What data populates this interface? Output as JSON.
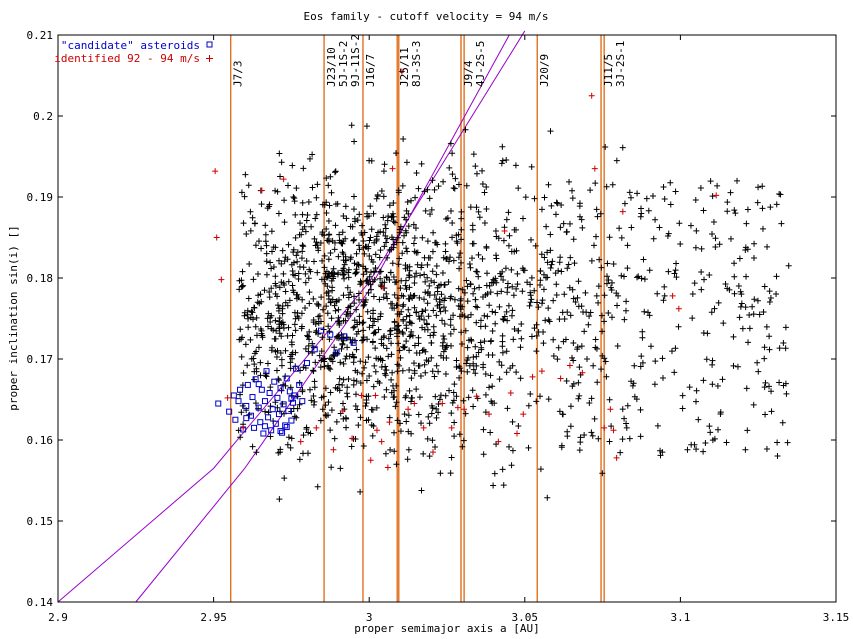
{
  "chart_data": {
    "type": "scatter",
    "title": "Eos family - cutoff velocity = 94 m/s",
    "xlabel": "proper semimajor axis a [AU]",
    "ylabel": "proper inclination sin(i) []",
    "xlim": [
      2.9,
      3.15
    ],
    "ylim": [
      0.14,
      0.21
    ],
    "xticks": [
      2.9,
      2.95,
      3.0,
      3.05,
      3.1,
      3.15
    ],
    "xtick_labels": [
      "2.9",
      "2.95",
      "3",
      "3.05",
      "3.1",
      "3.15"
    ],
    "yticks": [
      0.14,
      0.15,
      0.16,
      0.17,
      0.18,
      0.19,
      0.2,
      0.21
    ],
    "ytick_labels": [
      "0.14",
      "0.15",
      "0.16",
      "0.17",
      "0.18",
      "0.19",
      "0.2",
      "0.21"
    ],
    "grid": false,
    "legend_position": "top-left",
    "legend": [
      {
        "label": "\"candidate\" asteroids",
        "marker": "square",
        "color": "#0000cc"
      },
      {
        "label": "identified 92 - 94 m/s",
        "marker": "plus",
        "color": "#cc0000"
      }
    ],
    "background_marker_color": "#000000",
    "resonance_color": "#e07020",
    "resonances": [
      {
        "label": "J7/3",
        "a": 2.9555
      },
      {
        "label": "J23/10",
        "a": 2.9855
      },
      {
        "label": "5J-1S-2",
        "a": 2.9855
      },
      {
        "label": "9J-11S-2",
        "a": 2.9855
      },
      {
        "label": "J16/7",
        "a": 2.998
      },
      {
        "label": "J25/11",
        "a": 3.009
      },
      {
        "label": "8J-3S-3",
        "a": 3.0095
      },
      {
        "label": "J9/4",
        "a": 3.0295
      },
      {
        "label": "4J-2S-5",
        "a": 3.0305
      },
      {
        "label": "J20/9",
        "a": 3.054
      },
      {
        "label": "J11/5",
        "a": 3.0745
      },
      {
        "label": "3J-2S-1",
        "a": 3.0755
      }
    ],
    "boundary_line_color": "#9900cc",
    "boundary_lines": [
      {
        "points": [
          [
            2.9,
            0.14
          ],
          [
            2.95,
            0.1565
          ],
          [
            3.0,
            0.1795
          ],
          [
            3.05,
            0.2105
          ]
        ]
      },
      {
        "points": [
          [
            2.925,
            0.14
          ],
          [
            2.96,
            0.1565
          ],
          [
            3.0,
            0.1785
          ],
          [
            3.045,
            0.21
          ]
        ]
      }
    ],
    "series": [
      {
        "name": "\"candidate\" asteroids",
        "points": [
          [
            2.9515,
            0.1645
          ],
          [
            2.955,
            0.1635
          ],
          [
            2.9565,
            0.1655
          ],
          [
            2.957,
            0.1625
          ],
          [
            2.958,
            0.1648
          ],
          [
            2.9595,
            0.1613
          ],
          [
            2.9605,
            0.1642
          ],
          [
            2.961,
            0.1668
          ],
          [
            2.962,
            0.163
          ],
          [
            2.9625,
            0.1653
          ],
          [
            2.963,
            0.1615
          ],
          [
            2.9635,
            0.1675
          ],
          [
            2.9645,
            0.164
          ],
          [
            2.965,
            0.1622
          ],
          [
            2.9655,
            0.1662
          ],
          [
            2.966,
            0.1608
          ],
          [
            2.9665,
            0.1648
          ],
          [
            2.967,
            0.1685
          ],
          [
            2.9675,
            0.1628
          ],
          [
            2.968,
            0.1658
          ],
          [
            2.9685,
            0.1612
          ],
          [
            2.969,
            0.1638
          ],
          [
            2.9695,
            0.1672
          ],
          [
            2.97,
            0.162
          ],
          [
            2.9705,
            0.1652
          ],
          [
            2.971,
            0.1632
          ],
          [
            2.9715,
            0.1664
          ],
          [
            2.972,
            0.1609
          ],
          [
            2.9725,
            0.1644
          ],
          [
            2.973,
            0.1618
          ],
          [
            2.9735,
            0.1676
          ],
          [
            2.974,
            0.1636
          ],
          [
            2.9745,
            0.166
          ],
          [
            2.975,
            0.1624
          ],
          [
            2.9755,
            0.1646
          ],
          [
            2.976,
            0.1655
          ],
          [
            2.9765,
            0.1688
          ],
          [
            2.9775,
            0.1668
          ],
          [
            2.9785,
            0.1648
          ],
          [
            2.98,
            0.1695
          ],
          [
            2.9825,
            0.1712
          ],
          [
            2.9845,
            0.1735
          ],
          [
            2.9875,
            0.173
          ],
          [
            2.9895,
            0.1708
          ],
          [
            2.992,
            0.1728
          ],
          [
            2.995,
            0.172
          ],
          [
            2.975,
            0.1651
          ],
          [
            2.9715,
            0.1611
          ],
          [
            2.9645,
            0.1669
          ],
          [
            2.9585,
            0.1662
          ],
          [
            2.9605,
            0.1627
          ],
          [
            2.9665,
            0.1617
          ],
          [
            2.9735,
            0.1616
          ]
        ]
      },
      {
        "name": "identified 92 - 94 m/s",
        "points": [
          [
            2.9505,
            0.1932
          ],
          [
            2.951,
            0.185
          ],
          [
            2.9525,
            0.1798
          ],
          [
            2.9545,
            0.1652
          ],
          [
            2.9595,
            0.1615
          ],
          [
            2.9655,
            0.1908
          ],
          [
            2.9725,
            0.1922
          ],
          [
            2.978,
            0.1598
          ],
          [
            2.983,
            0.1615
          ],
          [
            2.9885,
            0.1588
          ],
          [
            2.9915,
            0.1636
          ],
          [
            2.9945,
            0.1602
          ],
          [
            2.9975,
            0.1655
          ],
          [
            3.0005,
            0.1575
          ],
          [
            3.002,
            0.1655
          ],
          [
            3.0025,
            0.1612
          ],
          [
            3.004,
            0.1598
          ],
          [
            3.006,
            0.1566
          ],
          [
            3.0065,
            0.1622
          ],
          [
            3.0075,
            0.1935
          ],
          [
            3.0105,
            0.2055
          ],
          [
            3.0125,
            0.1638
          ],
          [
            3.0145,
            0.1645
          ],
          [
            3.0175,
            0.1615
          ],
          [
            3.0205,
            0.1585
          ],
          [
            3.0235,
            0.1645
          ],
          [
            3.0265,
            0.1615
          ],
          [
            3.0285,
            0.164
          ],
          [
            3.0305,
            0.1638
          ],
          [
            3.0345,
            0.1654
          ],
          [
            3.0385,
            0.1632
          ],
          [
            3.0415,
            0.1598
          ],
          [
            3.0455,
            0.1658
          ],
          [
            3.0475,
            0.1608
          ],
          [
            3.0495,
            0.1632
          ],
          [
            3.0525,
            0.1678
          ],
          [
            3.0555,
            0.1685
          ],
          [
            3.0615,
            0.1676
          ],
          [
            3.0645,
            0.1692
          ],
          [
            3.0685,
            0.1683
          ],
          [
            3.0715,
            0.2025
          ],
          [
            3.0725,
            0.1935
          ],
          [
            3.0755,
            0.1615
          ],
          [
            3.0775,
            0.1638
          ],
          [
            3.0795,
            0.1578
          ],
          [
            3.0785,
            0.1612
          ],
          [
            3.0815,
            0.1882
          ],
          [
            3.0975,
            0.1778
          ],
          [
            3.0995,
            0.1762
          ],
          [
            3.1115,
            0.1902
          ],
          [
            3.0435,
            0.1858
          ],
          [
            3.0045,
            0.1788
          ]
        ]
      }
    ]
  }
}
